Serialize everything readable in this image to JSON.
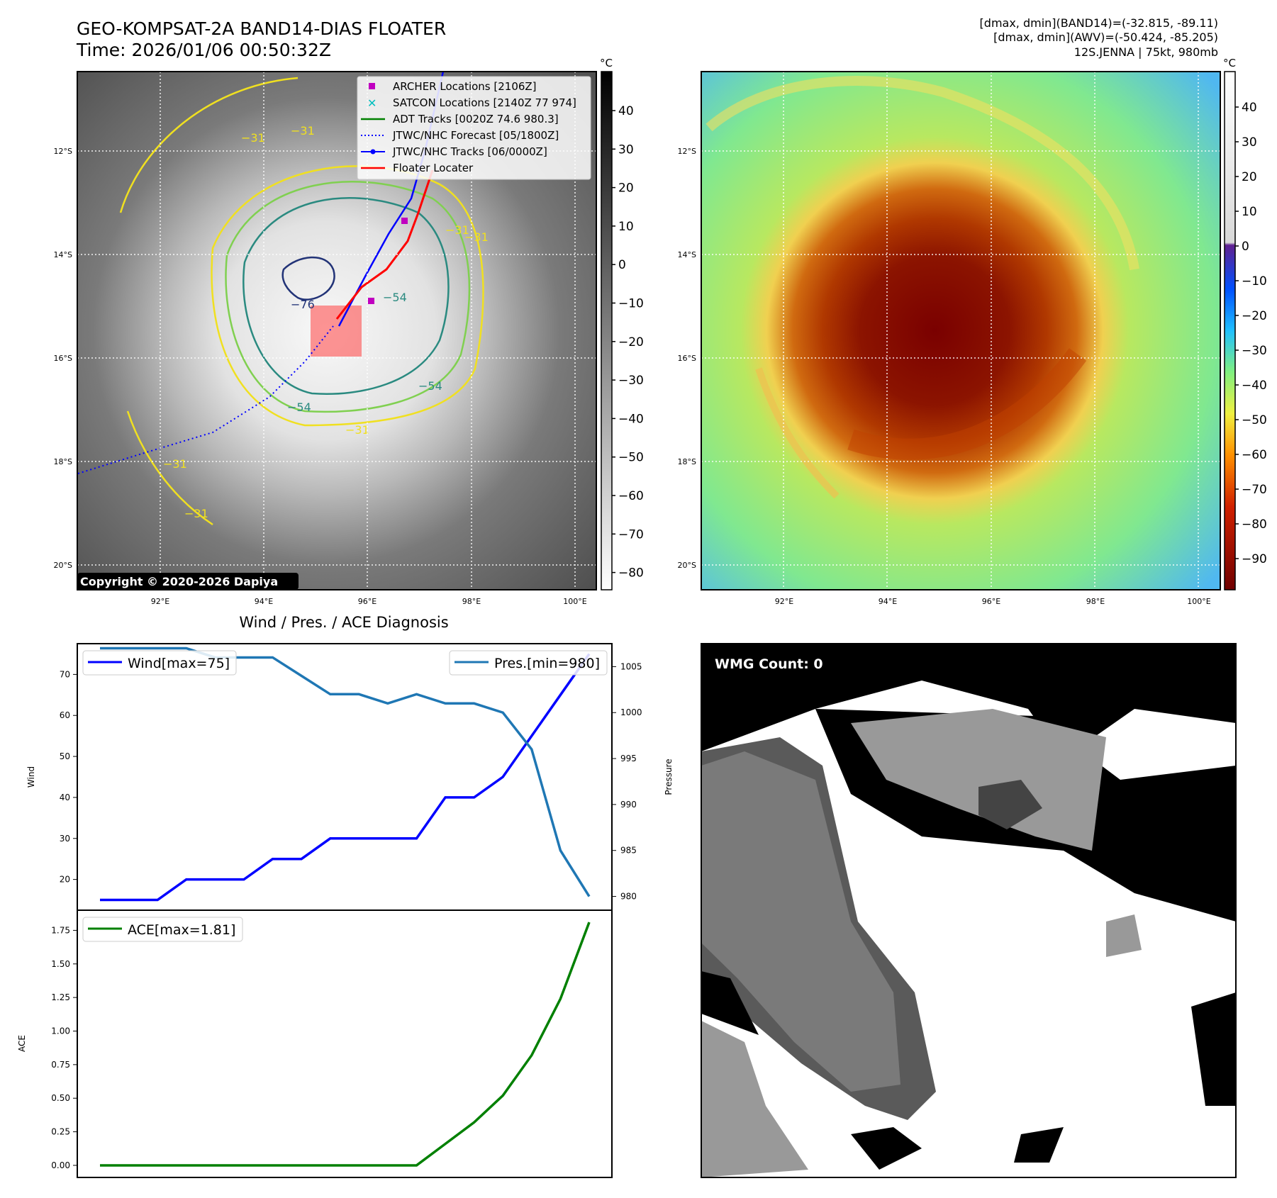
{
  "header": {
    "title_line1": "GEO-KOMPSAT-2A BAND14-DIAS FLOATER",
    "title_line2": "Time: 2026/01/06 00:50:32Z",
    "info_line1": "[dmax, dmin](BAND14)=(-32.815, -89.11)",
    "info_line2": "[dmax, dmin](AWV)=(-50.424, -85.205)",
    "info_line3": "12S.JENNA | 75kt, 980mb"
  },
  "map_axes": {
    "lon_labels": [
      "92°E",
      "94°E",
      "96°E",
      "98°E",
      "100°E"
    ],
    "lat_labels": [
      "12°S",
      "14°S",
      "16°S",
      "18°S",
      "20°S"
    ]
  },
  "ir_panel": {
    "copyright": "Copyright © 2020-2026 Dapiya",
    "colorbar_unit": "°C",
    "colorbar_ticks": [
      "40",
      "30",
      "20",
      "10",
      "0",
      "−10",
      "−20",
      "−30",
      "−40",
      "−50",
      "−60",
      "−70",
      "−80"
    ],
    "contour_labels": [
      "−31",
      "−31",
      "−31",
      "−31",
      "−31",
      "−54",
      "−54",
      "−54",
      "−76",
      "−31",
      "−31"
    ],
    "legend": [
      {
        "label": "ARCHER Locations [2106Z]",
        "color": "#c000c0",
        "marker": "square"
      },
      {
        "label": "SATCON Locations [2140Z 77 974]",
        "color": "#00bfbf",
        "marker": "x"
      },
      {
        "label": "ADT Tracks [0020Z 74.6 980.3]",
        "color": "#008000",
        "marker": "line"
      },
      {
        "label": "JTWC/NHC Forecast [05/1800Z]",
        "color": "#0000ff",
        "marker": "dotted"
      },
      {
        "label": "JTWC/NHC Tracks [06/0000Z]",
        "color": "#0000ff",
        "marker": "line-dot"
      },
      {
        "label": "Floater Locater",
        "color": "#ff0000",
        "marker": "line"
      }
    ]
  },
  "color_panel": {
    "colorbar_unit": "°C",
    "colorbar_ticks": [
      "40",
      "30",
      "20",
      "10",
      "0",
      "−10",
      "−20",
      "−30",
      "−40",
      "−50",
      "−60",
      "−70",
      "−80",
      "−90"
    ]
  },
  "wmg_panel": {
    "label": "WMG Count: 0"
  },
  "colors": {
    "wind": "#0000ff",
    "pressure": "#1f77b4",
    "ace": "#008000",
    "contour_yellow": "#f0e020",
    "contour_green": "#80d050",
    "contour_teal": "#2a8a80",
    "contour_navy": "#223377"
  },
  "chart_data": [
    {
      "type": "line",
      "title": "Wind / Pres. / ACE Diagnosis",
      "x": [
        0,
        1,
        2,
        3,
        4,
        5,
        6,
        7,
        8,
        9,
        10,
        11,
        12,
        13,
        14,
        15,
        16,
        17
      ],
      "series": [
        {
          "name": "Wind[max=75]",
          "axis": "left",
          "values": [
            15,
            15,
            15,
            20,
            20,
            20,
            25,
            25,
            30,
            30,
            30,
            30,
            40,
            40,
            45,
            55,
            65,
            75
          ]
        },
        {
          "name": "Pres.[min=980]",
          "axis": "right",
          "values": [
            1007,
            1007,
            1007,
            1007,
            1006,
            1006,
            1006,
            1004,
            1002,
            1002,
            1001,
            1002,
            1001,
            1001,
            1000,
            996,
            985,
            980
          ]
        }
      ],
      "ylabel": "Wind",
      "ylabel_right": "Pressure",
      "yticks": [
        "20",
        "30",
        "40",
        "50",
        "60",
        "70"
      ],
      "yticks_right": [
        "980",
        "985",
        "990",
        "995",
        "1000",
        "1005"
      ],
      "ylim": [
        12.5,
        77.5
      ],
      "ylim_right": [
        978.5,
        1007.5
      ]
    },
    {
      "type": "line",
      "series": [
        {
          "name": "ACE[max=1.81]",
          "values": [
            0,
            0,
            0,
            0,
            0,
            0,
            0,
            0,
            0,
            0,
            0,
            0,
            0.16,
            0.32,
            0.52,
            0.82,
            1.24,
            1.81
          ]
        }
      ],
      "x": [
        0,
        1,
        2,
        3,
        4,
        5,
        6,
        7,
        8,
        9,
        10,
        11,
        12,
        13,
        14,
        15,
        16,
        17
      ],
      "ylabel": "ACE",
      "yticks": [
        "0.00",
        "0.25",
        "0.50",
        "0.75",
        "1.00",
        "1.25",
        "1.50",
        "1.75"
      ],
      "ylim": [
        -0.09,
        1.9
      ]
    }
  ]
}
